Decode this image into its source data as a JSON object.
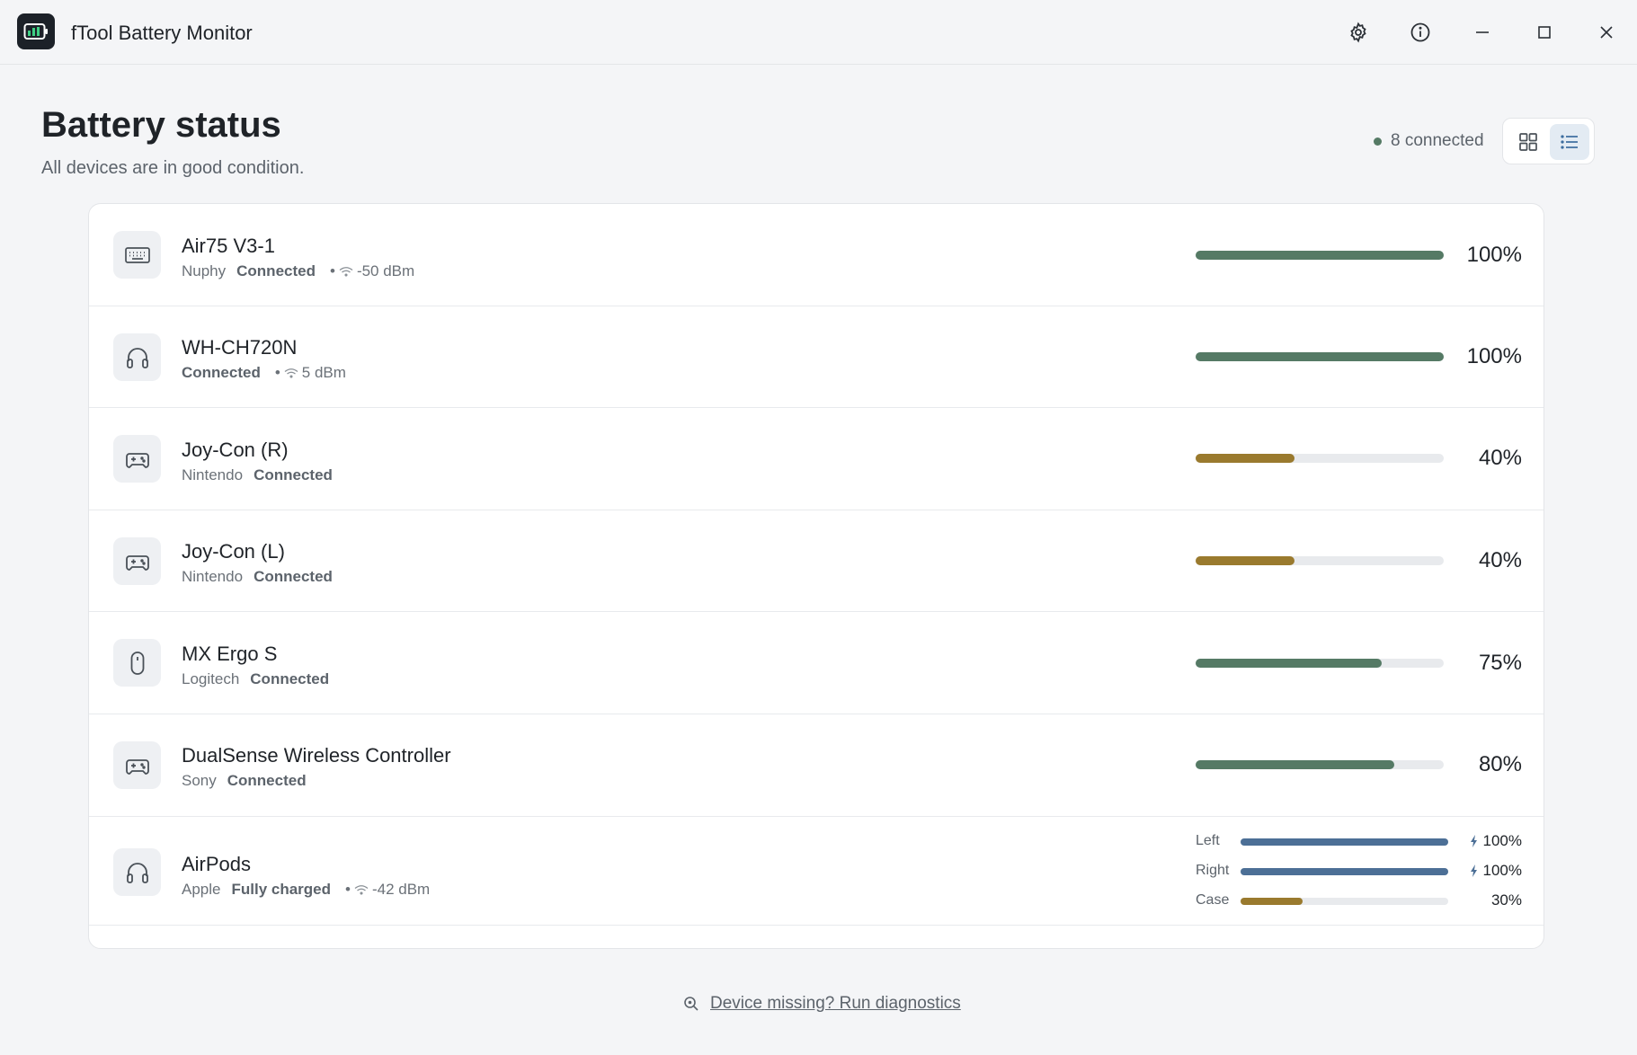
{
  "window": {
    "title": "fTool Battery Monitor"
  },
  "header": {
    "title": "Battery status",
    "subtitle": "All devices are in good condition.",
    "connected_label": "8 connected"
  },
  "colors": {
    "good": "#557a65",
    "medium": "#9a7a2e",
    "airpods": "#4c6f96",
    "track": "#e8eaed"
  },
  "devices": [
    {
      "name": "Air75 V3-1",
      "brand": "Nuphy",
      "status": "Connected",
      "signal": "-50 dBm",
      "icon": "keyboard-icon",
      "battery": 100,
      "battery_label": "100%"
    },
    {
      "name": "WH-CH720N",
      "brand": "",
      "status": "Connected",
      "signal": "5 dBm",
      "icon": "headphones-icon",
      "battery": 100,
      "battery_label": "100%"
    },
    {
      "name": "Joy-Con (R)",
      "brand": "Nintendo",
      "status": "Connected",
      "signal": "",
      "icon": "gamepad-icon",
      "battery": 40,
      "battery_label": "40%"
    },
    {
      "name": "Joy-Con (L)",
      "brand": "Nintendo",
      "status": "Connected",
      "signal": "",
      "icon": "gamepad-icon",
      "battery": 40,
      "battery_label": "40%"
    },
    {
      "name": "MX Ergo S",
      "brand": "Logitech",
      "status": "Connected",
      "signal": "",
      "icon": "mouse-icon",
      "battery": 75,
      "battery_label": "75%"
    },
    {
      "name": "DualSense Wireless Controller",
      "brand": "Sony",
      "status": "Connected",
      "signal": "",
      "icon": "gamepad-icon",
      "battery": 80,
      "battery_label": "80%"
    }
  ],
  "airpods": {
    "name": "AirPods",
    "brand": "Apple",
    "status": "Fully charged",
    "signal": "-42 dBm",
    "icon": "headphones-icon",
    "parts": [
      {
        "label": "Left",
        "battery": 100,
        "battery_label": "100%",
        "charging": true
      },
      {
        "label": "Right",
        "battery": 100,
        "battery_label": "100%",
        "charging": true
      },
      {
        "label": "Case",
        "battery": 30,
        "battery_label": "30%",
        "charging": false
      }
    ]
  },
  "footer": {
    "link_label": "Device missing? Run diagnostics"
  }
}
